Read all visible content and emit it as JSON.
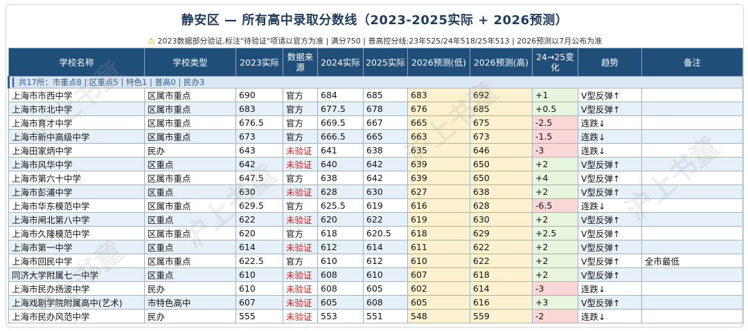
{
  "title": "静安区 — 所有高中录取分数线（2023-2025实际 + 2026预测）",
  "note_icon": "warning-icon",
  "note": "2023数据部分验证,标注\"待验证\"项请以官方为准 | 满分750 | 普高控分线:23年525/24年518/25年513 | 2026预测以7月公布为准",
  "headers": [
    "学校名称",
    "学校类型",
    "2023实际",
    "数据来源",
    "2024实际",
    "2025实际",
    "2026预测(低)",
    "2026预测(高)",
    "24→25变化",
    "趋势",
    "备注"
  ],
  "group_label": "▎共17所：市重点8 | 区重点5 | 特色1 | 普高0 | 民办3",
  "watermark": "沪上书童",
  "rows": [
    {
      "name": "上海市市西中学",
      "type": "区属市重点",
      "y2023": "690",
      "source": "官方",
      "y2024": "684",
      "y2025": "685",
      "p_low": "683",
      "p_high": "692",
      "change": "+1",
      "trend": "V型反弹↑",
      "remark": ""
    },
    {
      "name": "上海市市北中学",
      "type": "区属市重点",
      "y2023": "683",
      "source": "官方",
      "y2024": "677.5",
      "y2025": "678",
      "p_low": "676",
      "p_high": "685",
      "change": "+0.5",
      "trend": "V型反弹↑",
      "remark": ""
    },
    {
      "name": "上海市育才中学",
      "type": "区属市重点",
      "y2023": "676.5",
      "source": "官方",
      "y2024": "669.5",
      "y2025": "667",
      "p_low": "665",
      "p_high": "675",
      "change": "-2.5",
      "trend": "连跌↓",
      "remark": ""
    },
    {
      "name": "上海市新中高级中学",
      "type": "区属市重点",
      "y2023": "673",
      "source": "官方",
      "y2024": "666.5",
      "y2025": "665",
      "p_low": "663",
      "p_high": "673",
      "change": "-1.5",
      "trend": "连跌↓",
      "remark": ""
    },
    {
      "name": "上海田家炳中学",
      "type": "民办",
      "y2023": "643",
      "source": "未验证",
      "y2024": "641",
      "y2025": "638",
      "p_low": "635",
      "p_high": "646",
      "change": "-3",
      "trend": "连跌↓",
      "remark": ""
    },
    {
      "name": "上海市风华中学",
      "type": "区重点",
      "y2023": "642",
      "source": "未验证",
      "y2024": "640",
      "y2025": "642",
      "p_low": "639",
      "p_high": "650",
      "change": "+2",
      "trend": "V型反弹↑",
      "remark": ""
    },
    {
      "name": "上海市第六十中学",
      "type": "区属市重点",
      "y2023": "647.5",
      "source": "官方",
      "y2024": "638",
      "y2025": "642",
      "p_low": "639",
      "p_high": "650",
      "change": "+4",
      "trend": "V型反弹↑",
      "remark": ""
    },
    {
      "name": "上海市彭浦中学",
      "type": "区重点",
      "y2023": "630",
      "source": "未验证",
      "y2024": "628",
      "y2025": "630",
      "p_low": "627",
      "p_high": "638",
      "change": "+2",
      "trend": "V型反弹↑",
      "remark": ""
    },
    {
      "name": "上海市华东模范中学",
      "type": "区属市重点",
      "y2023": "629.5",
      "source": "官方",
      "y2024": "625.5",
      "y2025": "619",
      "p_low": "616",
      "p_high": "628",
      "change": "-6.5",
      "trend": "连跌↓",
      "remark": ""
    },
    {
      "name": "上海市闸北第八中学",
      "type": "区重点",
      "y2023": "622",
      "source": "未验证",
      "y2024": "620",
      "y2025": "622",
      "p_low": "619",
      "p_high": "630",
      "change": "+2",
      "trend": "V型反弹↑",
      "remark": ""
    },
    {
      "name": "上海市久隆模范中学",
      "type": "区属市重点",
      "y2023": "620",
      "source": "官方",
      "y2024": "618",
      "y2025": "620.5",
      "p_low": "618",
      "p_high": "629",
      "change": "+2.5",
      "trend": "V型反弹↑",
      "remark": ""
    },
    {
      "name": "上海市第一中学",
      "type": "区重点",
      "y2023": "614",
      "source": "未验证",
      "y2024": "612",
      "y2025": "614",
      "p_low": "611",
      "p_high": "622",
      "change": "+2",
      "trend": "V型反弹↑",
      "remark": ""
    },
    {
      "name": "上海市回民中学",
      "type": "区属市重点",
      "y2023": "622.5",
      "source": "官方",
      "y2024": "610",
      "y2025": "612",
      "p_low": "610",
      "p_high": "622",
      "change": "+2",
      "trend": "V型反弹↑",
      "remark": "全市最低"
    },
    {
      "name": "同济大学附属七一中学",
      "type": "区重点",
      "y2023": "610",
      "source": "未验证",
      "y2024": "608",
      "y2025": "610",
      "p_low": "607",
      "p_high": "618",
      "change": "+2",
      "trend": "V型反弹↑",
      "remark": ""
    },
    {
      "name": "上海市民办扬波中学",
      "type": "民办",
      "y2023": "610",
      "source": "未验证",
      "y2024": "608",
      "y2025": "605",
      "p_low": "602",
      "p_high": "614",
      "change": "-3",
      "trend": "连跌↓",
      "remark": ""
    },
    {
      "name": "上海戏剧学院附属高中(艺术)",
      "type": "市特色高中",
      "y2023": "607",
      "source": "未验证",
      "y2024": "605",
      "y2025": "608",
      "p_low": "605",
      "p_high": "616",
      "change": "+3",
      "trend": "V型反弹↑",
      "remark": ""
    },
    {
      "name": "上海市民办风范中学",
      "type": "民办",
      "y2023": "555",
      "source": "未验证",
      "y2024": "553",
      "y2025": "551",
      "p_low": "548",
      "p_high": "559",
      "change": "-2",
      "trend": "连跌↓",
      "remark": ""
    }
  ]
}
